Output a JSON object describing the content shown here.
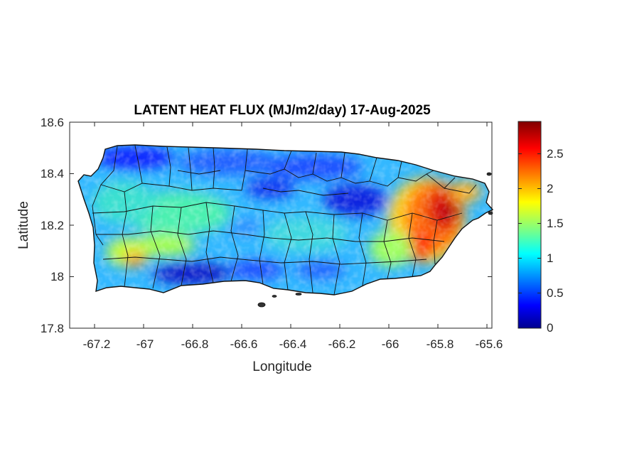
{
  "title": "LATENT HEAT FLUX (MJ/m2/day) 17-Aug-2025",
  "xlabel": "Longitude",
  "ylabel": "Latitude",
  "x_ticks": [
    "-67.2",
    "-67",
    "-66.8",
    "-66.6",
    "-66.4",
    "-66.2",
    "-66",
    "-65.8",
    "-65.6"
  ],
  "y_ticks": [
    "18.6",
    "18.4",
    "18.2",
    "18",
    "17.8"
  ],
  "colorbar_ticks": [
    "2.5",
    "2",
    "1.5",
    "1",
    "0.5",
    "0"
  ],
  "chart_data": {
    "type": "heatmap",
    "title": "LATENT HEAT FLUX (MJ/m2/day) 17-Aug-2025",
    "xlabel": "Longitude",
    "ylabel": "Latitude",
    "xlim": [
      -67.3,
      -65.58
    ],
    "ylim": [
      17.8,
      18.6
    ],
    "x_tick_values": [
      -67.2,
      -67,
      -66.8,
      -66.6,
      -66.4,
      -66.2,
      -66,
      -65.8,
      -65.6
    ],
    "y_tick_values": [
      18.6,
      18.4,
      18.2,
      18,
      17.8
    ],
    "colorbar": {
      "colormap": "jet",
      "range": [
        0,
        2.95
      ],
      "tick_values": [
        2.5,
        2,
        1.5,
        1,
        0.5,
        0
      ],
      "colors": [
        "#00008f",
        "#0000ff",
        "#0080ff",
        "#00ffff",
        "#80ff80",
        "#ffff00",
        "#ff8000",
        "#ff0000",
        "#800000"
      ]
    },
    "grid": false,
    "legend": "colorbar-right"
  }
}
